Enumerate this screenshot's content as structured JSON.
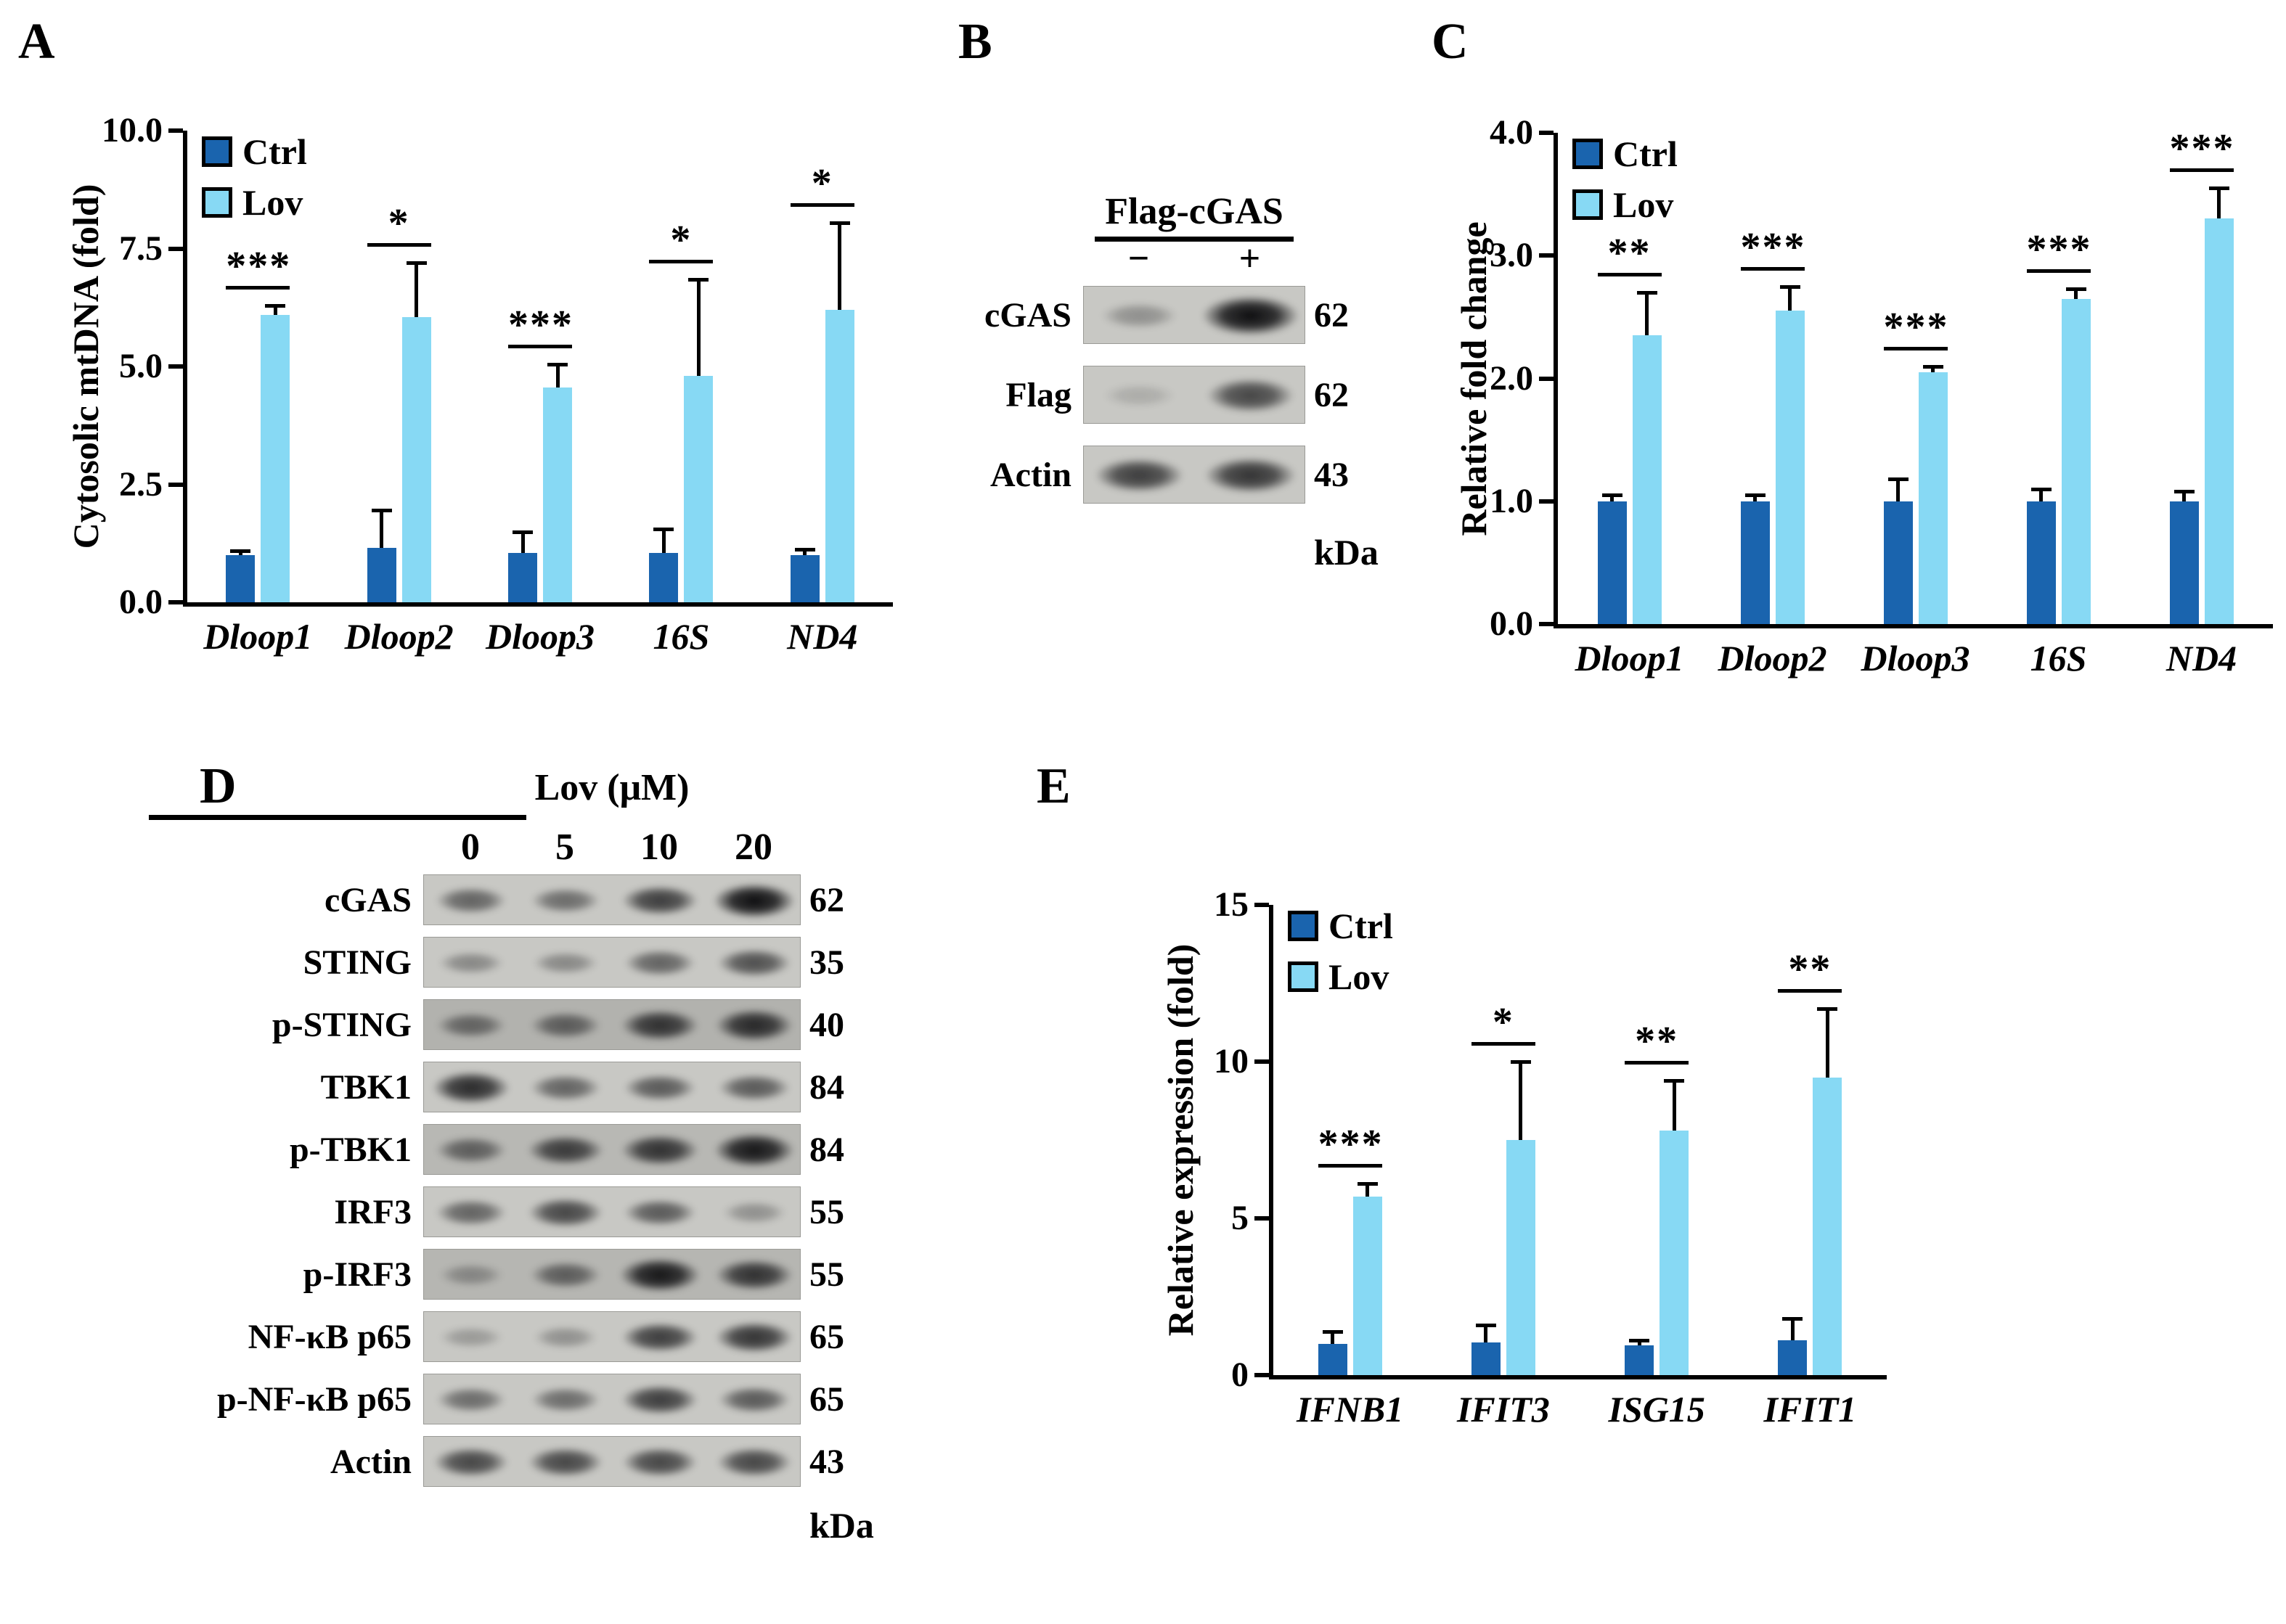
{
  "panels": {
    "a_label": "A",
    "b_label": "B",
    "c_label": "C",
    "d_label": "D",
    "e_label": "E"
  },
  "colors": {
    "ctrl": "#1a64ae",
    "lov": "#87d9f4"
  },
  "chart_data": [
    {
      "id": "A",
      "type": "bar",
      "title": "",
      "ylabel": "Cytosolic mtDNA (fold)",
      "xlabel": "",
      "ylim": [
        0,
        10
      ],
      "yticks": [
        "0.0",
        "2.5",
        "5.0",
        "7.5",
        "10.0"
      ],
      "categories": [
        "Dloop1",
        "Dloop2",
        "Dloop3",
        "16S",
        "ND4"
      ],
      "series": [
        {
          "name": "Ctrl",
          "color": "#1a64ae",
          "values": [
            1.0,
            1.15,
            1.05,
            1.05,
            1.0
          ],
          "errors": [
            0.1,
            0.8,
            0.45,
            0.5,
            0.12
          ]
        },
        {
          "name": "Lov",
          "color": "#87d9f4",
          "values": [
            6.1,
            6.05,
            4.55,
            4.8,
            6.2
          ],
          "errors": [
            0.2,
            1.15,
            0.5,
            2.05,
            1.85
          ]
        }
      ],
      "significance": [
        "***",
        "*",
        "***",
        "*",
        "*"
      ],
      "legend_position": "top-left",
      "grid": false
    },
    {
      "id": "C",
      "type": "bar",
      "title": "",
      "ylabel": "Relative fold change",
      "xlabel": "",
      "ylim": [
        0,
        4
      ],
      "yticks": [
        "0.0",
        "1.0",
        "2.0",
        "3.0",
        "4.0"
      ],
      "categories": [
        "Dloop1",
        "Dloop2",
        "Dloop3",
        "16S",
        "ND4"
      ],
      "series": [
        {
          "name": "Ctrl",
          "color": "#1a64ae",
          "values": [
            1.0,
            1.0,
            1.0,
            1.0,
            1.0
          ],
          "errors": [
            0.05,
            0.05,
            0.18,
            0.1,
            0.08
          ]
        },
        {
          "name": "Lov",
          "color": "#87d9f4",
          "values": [
            2.35,
            2.55,
            2.05,
            2.65,
            3.3
          ],
          "errors": [
            0.35,
            0.2,
            0.05,
            0.08,
            0.25
          ]
        }
      ],
      "significance": [
        "**",
        "***",
        "***",
        "***",
        "***"
      ],
      "legend_position": "top-left",
      "grid": false
    },
    {
      "id": "E",
      "type": "bar",
      "title": "",
      "ylabel": "Relative expression (fold)",
      "xlabel": "",
      "ylim": [
        0,
        15
      ],
      "yticks": [
        "0",
        "5",
        "10",
        "15"
      ],
      "categories": [
        "IFNB1",
        "IFIT3",
        "ISG15",
        "IFIT1"
      ],
      "series": [
        {
          "name": "Ctrl",
          "color": "#1a64ae",
          "values": [
            1.0,
            1.05,
            0.95,
            1.1
          ],
          "errors": [
            0.4,
            0.55,
            0.15,
            0.7
          ]
        },
        {
          "name": "Lov",
          "color": "#87d9f4",
          "values": [
            5.7,
            7.5,
            7.8,
            9.5
          ],
          "errors": [
            0.4,
            2.5,
            1.6,
            2.2
          ]
        }
      ],
      "significance": [
        "***",
        "*",
        "**",
        "**"
      ],
      "legend_position": "top-left",
      "grid": false
    }
  ],
  "blots": {
    "B": {
      "title": "Flag-cGAS",
      "lane_labels": [
        "−",
        "+"
      ],
      "kda_unit": "kDa",
      "rows": [
        {
          "label": "cGAS",
          "kda": "62",
          "bands": [
            0.3,
            1.0
          ]
        },
        {
          "label": "Flag",
          "kda": "62",
          "bands": [
            0.15,
            0.7
          ]
        },
        {
          "label": "Actin",
          "kda": "43",
          "bands": [
            0.75,
            0.8
          ]
        }
      ]
    },
    "D": {
      "title": "Lov (μM)",
      "lane_labels": [
        "0",
        "5",
        "10",
        "20"
      ],
      "kda_unit": "kDa",
      "rows": [
        {
          "label": "cGAS",
          "kda": "62",
          "bands": [
            0.55,
            0.5,
            0.75,
            1.0
          ]
        },
        {
          "label": "STING",
          "kda": "35",
          "bands": [
            0.35,
            0.35,
            0.55,
            0.65
          ]
        },
        {
          "label": "p-STING",
          "kda": "40",
          "bands": [
            0.5,
            0.55,
            0.8,
            0.85
          ],
          "bg": 0.3
        },
        {
          "label": "TBK1",
          "kda": "84",
          "bands": [
            0.85,
            0.55,
            0.6,
            0.6
          ]
        },
        {
          "label": "p-TBK1",
          "kda": "84",
          "bands": [
            0.55,
            0.75,
            0.8,
            0.95
          ],
          "bg": 0.25
        },
        {
          "label": "IRF3",
          "kda": "55",
          "bands": [
            0.55,
            0.7,
            0.6,
            0.3
          ]
        },
        {
          "label": "p-IRF3",
          "kda": "55",
          "bands": [
            0.3,
            0.55,
            0.95,
            0.8
          ],
          "bg": 0.27
        },
        {
          "label": "NF-κB p65",
          "kda": "65",
          "bands": [
            0.25,
            0.3,
            0.75,
            0.8
          ]
        },
        {
          "label": "p-NF-κB p65",
          "kda": "65",
          "bands": [
            0.5,
            0.5,
            0.75,
            0.6
          ]
        },
        {
          "label": "Actin",
          "kda": "43",
          "bands": [
            0.7,
            0.7,
            0.7,
            0.7
          ]
        }
      ]
    }
  }
}
